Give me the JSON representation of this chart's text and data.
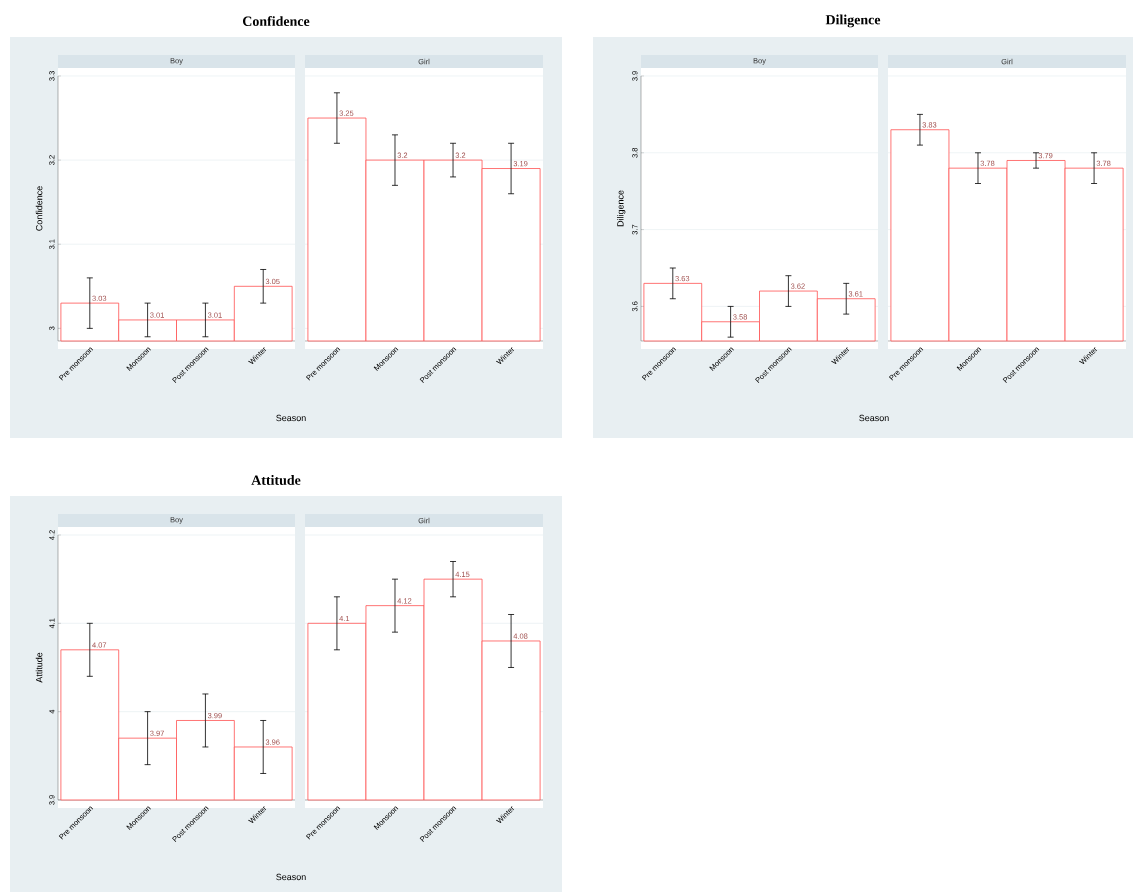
{
  "chart_data": [
    {
      "type": "bar",
      "title": "Confidence",
      "subtitle": "Boy",
      "xlabel": "Season",
      "ylabel": "Confidence",
      "categories": [
        "Pre monsoon",
        "Monsoon",
        "Post monsoon",
        "Winter"
      ],
      "values": [
        3.03,
        3.01,
        3.01,
        3.05
      ],
      "errors": [
        [
          3.0,
          3.06
        ],
        [
          2.99,
          3.03
        ],
        [
          2.99,
          3.03
        ],
        [
          3.03,
          3.07
        ]
      ],
      "value_labels": [
        "3.03",
        "3.01",
        "3.01",
        "3.05"
      ],
      "color": "#ff5050",
      "ylim": [
        2.985,
        3.3
      ],
      "yticks": [
        3,
        3.1,
        3.2,
        3.3
      ],
      "grid": "y"
    },
    {
      "type": "bar",
      "subtitle": "Girl",
      "categories": [
        "Pre monsoon",
        "Monsoon",
        "Post monsoon",
        "Winter"
      ],
      "values": [
        3.25,
        3.2,
        3.2,
        3.19
      ],
      "errors": [
        [
          3.22,
          3.28
        ],
        [
          3.17,
          3.23
        ],
        [
          3.18,
          3.22
        ],
        [
          3.16,
          3.22
        ]
      ],
      "value_labels": [
        "3.25",
        "3.2",
        "3.2",
        "3.19"
      ],
      "color": "#ff5050",
      "ylim": [
        2.985,
        3.3
      ],
      "yticks": [
        3,
        3.1,
        3.2,
        3.3
      ],
      "grid": "y",
      "tick_labels": "x"
    },
    {
      "type": "bar",
      "title": "Diligence",
      "subtitle": "Boy",
      "xlabel": "Season",
      "ylabel": "Diligence",
      "categories": [
        "Pre monsoon",
        "Monsoon",
        "Post monsoon",
        "Winter"
      ],
      "values": [
        3.63,
        3.58,
        3.62,
        3.61
      ],
      "errors": [
        [
          3.61,
          3.65
        ],
        [
          3.56,
          3.6
        ],
        [
          3.6,
          3.64
        ],
        [
          3.59,
          3.63
        ]
      ],
      "value_labels": [
        "3.63",
        "3.58",
        "3.62",
        "3.61"
      ],
      "color": "#ff5050",
      "ylim": [
        3.555,
        3.9
      ],
      "yticks": [
        3.6,
        3.7,
        3.8,
        3.9
      ],
      "grid": "y"
    },
    {
      "type": "bar",
      "subtitle": "Girl",
      "categories": [
        "Pre monsoon",
        "Monsoon",
        "Post monsoon",
        "Winter"
      ],
      "values": [
        3.83,
        3.78,
        3.79,
        3.78
      ],
      "errors": [
        [
          3.81,
          3.85
        ],
        [
          3.76,
          3.8
        ],
        [
          3.78,
          3.8
        ],
        [
          3.76,
          3.8
        ]
      ],
      "value_labels": [
        "3.83",
        "3.78",
        "3.79",
        "3.78"
      ],
      "color": "#ff5050",
      "ylim": [
        3.555,
        3.9
      ],
      "yticks": [
        3.6,
        3.7,
        3.8,
        3.9
      ],
      "grid": "y",
      "tick_labels": "x"
    },
    {
      "type": "bar",
      "title": "Attitude",
      "subtitle": "Boy",
      "xlabel": "Season",
      "ylabel": "Attitude",
      "categories": [
        "Pre monsoon",
        "Monsoon",
        "Post monsoon",
        "Winter"
      ],
      "values": [
        4.07,
        3.97,
        3.99,
        3.96
      ],
      "errors": [
        [
          4.04,
          4.1
        ],
        [
          3.94,
          4.0
        ],
        [
          3.96,
          4.02
        ],
        [
          3.93,
          3.99
        ]
      ],
      "value_labels": [
        "4.07",
        "3.97",
        "3.99",
        "3.96"
      ],
      "color": "#ff5050",
      "ylim": [
        3.9,
        4.2
      ],
      "yticks": [
        3.9,
        4,
        4.1,
        4.2
      ],
      "grid": "y"
    },
    {
      "type": "bar",
      "subtitle": "Girl",
      "categories": [
        "Pre monsoon",
        "Monsoon",
        "Post monsoon",
        "Winter"
      ],
      "values": [
        4.1,
        4.12,
        4.15,
        4.08
      ],
      "errors": [
        [
          4.07,
          4.13
        ],
        [
          4.09,
          4.15
        ],
        [
          4.13,
          4.17
        ],
        [
          4.05,
          4.11
        ]
      ],
      "value_labels": [
        "4.1",
        "4.12",
        "4.15",
        "4.08"
      ],
      "color": "#ff5050",
      "ylim": [
        3.9,
        4.2
      ],
      "yticks": [
        3.9,
        4,
        4.1,
        4.2
      ],
      "grid": "y",
      "tick_labels": "x"
    }
  ]
}
